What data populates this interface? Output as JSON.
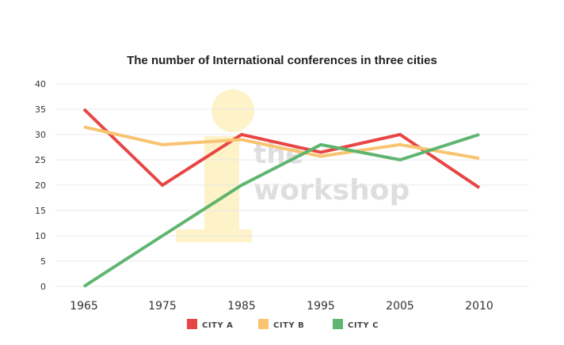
{
  "chart_data": {
    "type": "line",
    "title": "The number of International conferences in three cities",
    "xlabel": "",
    "ylabel": "",
    "categories": [
      "1965",
      "1975",
      "1985",
      "1995",
      "2005",
      "2010"
    ],
    "yticks": [
      "0",
      "5",
      "10",
      "15",
      "20",
      "25",
      "30",
      "35",
      "40"
    ],
    "ylim": [
      0,
      40
    ],
    "grid": true,
    "legend_position": "bottom",
    "series": [
      {
        "name": "CITY A",
        "color": "#e84545",
        "values": [
          35,
          20,
          30,
          26.5,
          30,
          19.5
        ]
      },
      {
        "name": "CITY B",
        "color": "#f8c471",
        "values": [
          31.5,
          28,
          29,
          25.7,
          28,
          25.3
        ]
      },
      {
        "name": "CITY C",
        "color": "#5fb56f",
        "values": [
          0,
          10,
          20,
          28,
          25,
          30
        ]
      }
    ]
  },
  "watermark": {
    "line1": "the",
    "line2": "workshop",
    "colors": {
      "icon": "#fdf2c8",
      "text": "#dedede"
    }
  }
}
